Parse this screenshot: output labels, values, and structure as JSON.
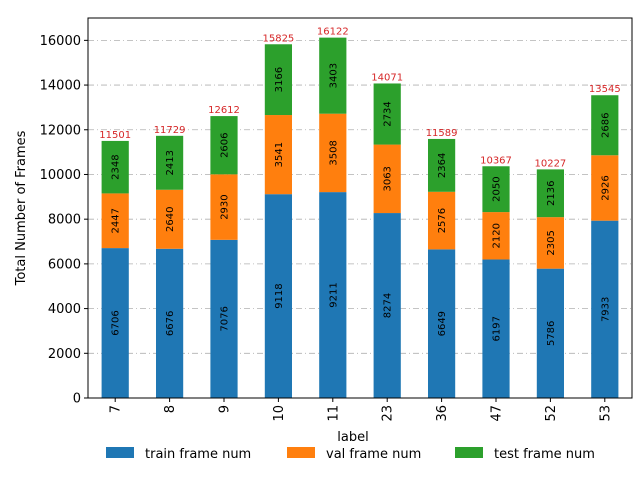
{
  "chart_data": {
    "type": "bar",
    "stacked": true,
    "title": "",
    "xlabel": "label",
    "ylabel": "Total Number of Frames",
    "ylim": [
      0,
      17000
    ],
    "yticks": [
      0,
      2000,
      4000,
      6000,
      8000,
      10000,
      12000,
      14000,
      16000
    ],
    "categories": [
      "7",
      "8",
      "9",
      "10",
      "11",
      "23",
      "36",
      "47",
      "52",
      "53"
    ],
    "series": [
      {
        "name": "train frame num",
        "color": "#1f77b4",
        "values": [
          6706,
          6676,
          7076,
          9118,
          9211,
          8274,
          6649,
          6197,
          5786,
          7933
        ]
      },
      {
        "name": "val frame num",
        "color": "#ff7f0e",
        "values": [
          2447,
          2640,
          2930,
          3541,
          3508,
          3063,
          2576,
          2120,
          2305,
          2926
        ]
      },
      {
        "name": "test frame num",
        "color": "#2ca02c",
        "values": [
          2348,
          2413,
          2606,
          3166,
          3403,
          2734,
          2364,
          2050,
          2136,
          2686
        ]
      }
    ],
    "totals": [
      11501,
      11729,
      12612,
      15825,
      16122,
      14071,
      11589,
      10367,
      10227,
      13545
    ],
    "total_label_color": "#d62728",
    "grid": "horizontal dashed",
    "legend_position": "bottom"
  }
}
